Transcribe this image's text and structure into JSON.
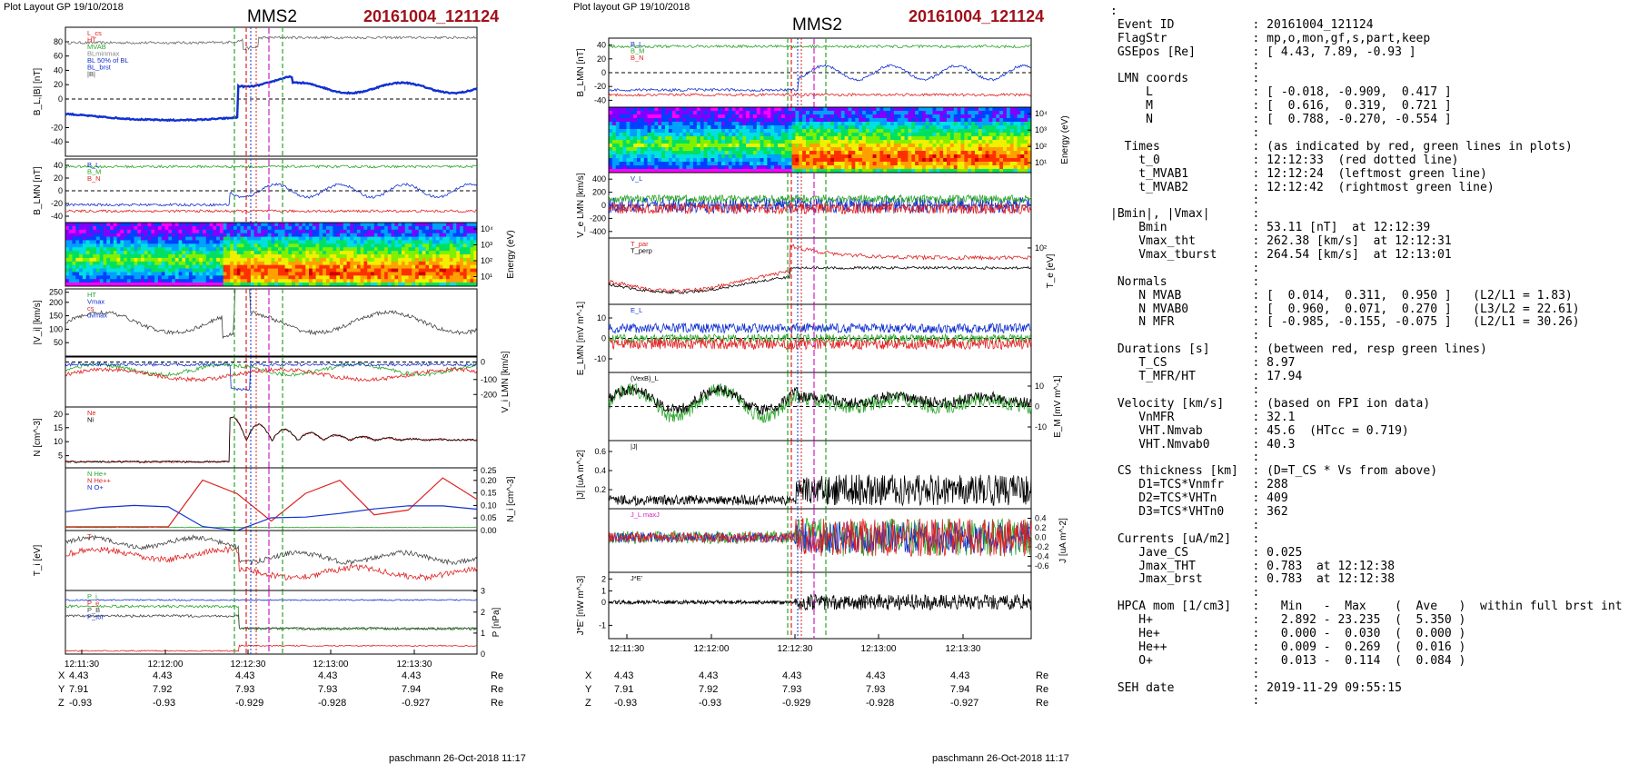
{
  "left": {
    "plot_layout": "Plot Layout GP 19/10/2018",
    "spacecraft": "MMS2",
    "event": "20161004_121124",
    "footer": "paschmann 26-Oct-2018 11:17",
    "time_ticks": [
      "12:11:30",
      "12:12:00",
      "12:12:30",
      "12:13:00",
      "12:13:30"
    ],
    "coords": {
      "X": [
        "4.43",
        "4.43",
        "4.43",
        "4.43",
        "4.43"
      ],
      "Y": [
        "7.91",
        "7.92",
        "7.93",
        "7.93",
        "7.94"
      ],
      "Z": [
        "-0.93",
        "-0.93",
        "-0.929",
        "-0.928",
        "-0.927"
      ],
      "unit": "Re"
    }
  },
  "right": {
    "plot_layout": "Plot layout GP 19/10/2018",
    "spacecraft": "MMS2",
    "event": "20161004_121124",
    "footer": "paschmann 26-Oct-2018 11:17",
    "time_ticks": [
      "12:11:30",
      "12:12:00",
      "12:12:30",
      "12:13:00",
      "12:13:30"
    ],
    "coords": {
      "X": [
        "4.43",
        "4.43",
        "4.43",
        "4.43",
        "4.43"
      ],
      "Y": [
        "7.91",
        "7.92",
        "7.93",
        "7.93",
        "7.94"
      ],
      "Z": [
        "-0.93",
        "-0.93",
        "-0.929",
        "-0.928",
        "-0.927"
      ],
      "unit": "Re"
    }
  },
  "colors": {
    "event": "#a0101a",
    "green_line": "#2aa52a",
    "red_line": "#e02020",
    "magenta_line": "#d020c0",
    "blue_line": "#1030d0"
  },
  "chart_data": [
    {
      "type": "line",
      "x_range": [
        "12:11:24",
        "12:13:54"
      ],
      "panels": [
        {
          "ylabel": "B_L,|B| [nT]",
          "yticks": [
            -40,
            -20,
            0,
            20,
            40,
            60,
            80
          ],
          "legend": [
            "L_cs",
            "HT",
            "MVAB",
            "BLminmax",
            "BL 50% of BL",
            "BL_brst",
            "|B|"
          ]
        },
        {
          "ylabel": "B_LMN [nT]",
          "yticks": [
            -40,
            -20,
            0,
            20,
            40
          ],
          "legend": [
            "B_L",
            "B_M",
            "B_N"
          ]
        },
        {
          "ylabel": "Energy (eV)",
          "yticks": [
            "10^1",
            "10^2",
            "10^3",
            "10^4"
          ],
          "type": "heatmap"
        },
        {
          "ylabel": "|V_i| [km/s]",
          "yticks": [
            50,
            100,
            150,
            200,
            250
          ],
          "legend": [
            "HT",
            "Vmax",
            "cs",
            "dvmax"
          ]
        },
        {
          "ylabel": "V_i LMN [km/s]",
          "yticks": [
            -200,
            -100,
            0
          ]
        },
        {
          "ylabel": "N [cm^-3]",
          "yticks": [
            5,
            10,
            15,
            20
          ],
          "legend": [
            "Ne",
            "Ni"
          ]
        },
        {
          "ylabel": "N_i [cm^-3]",
          "yticks": [
            0.0,
            0.05,
            0.1,
            0.15,
            0.2,
            0.25
          ],
          "legend": [
            "N He+",
            "N He++",
            "N O+"
          ]
        },
        {
          "ylabel": "T_i [eV]",
          "legend": [
            "T_i"
          ]
        },
        {
          "ylabel": "P [nPa]",
          "yticks": [
            0,
            1,
            2,
            3
          ],
          "legend": [
            "P_i",
            "P_e",
            "P_B",
            "P_tot"
          ]
        }
      ]
    },
    {
      "type": "line",
      "x_range": [
        "12:11:24",
        "12:13:54"
      ],
      "panels": [
        {
          "ylabel": "B_LMN [nT]",
          "yticks": [
            -40,
            -20,
            0,
            20,
            40
          ],
          "legend": [
            "B_L",
            "B_M",
            "B_N"
          ]
        },
        {
          "ylabel": "Energy (eV)",
          "yticks": [
            "10^1",
            "10^2",
            "10^3",
            "10^4"
          ],
          "type": "heatmap"
        },
        {
          "ylabel": "V_e LMN [km/s]",
          "yticks": [
            -400,
            -200,
            0,
            200,
            400
          ],
          "legend": [
            "V_L"
          ]
        },
        {
          "ylabel": "T_e [eV]",
          "yticks": [
            "10^2"
          ],
          "legend": [
            "T_par",
            "T_perp"
          ]
        },
        {
          "ylabel": "E_LMN [mV m^-1]",
          "yticks": [
            -10,
            0,
            10
          ],
          "legend": [
            "E_L"
          ]
        },
        {
          "ylabel": "E_M [mV m^-1]",
          "yticks": [
            -10,
            0,
            10
          ],
          "legend": [
            "(VexB)_L"
          ]
        },
        {
          "ylabel": "|J| [uA m^-2]",
          "yticks": [
            0.2,
            0.4,
            0.6
          ],
          "legend": [
            "|J|"
          ]
        },
        {
          "ylabel": "J [uA m^-2]",
          "yticks": [
            -0.6,
            -0.4,
            -0.2,
            0.0,
            0.2,
            0.4
          ],
          "legend": [
            "J_L maxJ"
          ]
        },
        {
          "ylabel": "J*E' [nW m^-3]",
          "yticks": [
            -1,
            0,
            1,
            2
          ],
          "legend": [
            "J*E'"
          ]
        }
      ]
    }
  ],
  "info_lines": [
    ":",
    " Event ID           : 20161004_121124",
    " FlagStr            : mp,o,mon,gf,s,part,keep",
    " GSEpos [Re]        : [ 4.43, 7.89, -0.93 ]",
    "                    :",
    " LMN coords         :",
    "     L              : [ -0.018, -0.909,  0.417 ]",
    "     M              : [  0.616,  0.319,  0.721 ]",
    "     N              : [  0.788, -0.270, -0.554 ]",
    "                    :",
    "  Times             : (as indicated by red, green lines in plots)",
    "    t_0             : 12:12:33  (red dotted line)",
    "    t_MVAB1         : 12:12:24  (leftmost green line)",
    "    t_MVAB2         : 12:12:42  (rightmost green line)",
    "                    :",
    "|Bmin|, |Vmax|      :",
    "    Bmin            : 53.11 [nT]  at 12:12:39",
    "    Vmax_tht        : 262.38 [km/s]  at 12:12:31",
    "    Vmax_tburst     : 264.54 [km/s]  at 12:13:01",
    "                    :",
    " Normals            :",
    "    N MVAB          : [  0.014,  0.311,  0.950 ]   (L2/L1 = 1.83)",
    "    N MVAB0         : [  0.960,  0.071,  0.270 ]   (L3/L2 = 22.61)",
    "    N MFR           : [ -0.985, -0.155, -0.075 ]   (L2/L1 = 30.26)",
    "                    :",
    " Durations [s]      : (between red, resp green lines)",
    "    T_CS            : 8.97",
    "    T_MFR/HT        : 17.94",
    "                    :",
    " Velocity [km/s]    : (based on FPI ion data)",
    "    VnMFR           : 32.1",
    "    VHT.Nmvab       : 45.6  (HTcc = 0.719)",
    "    VHT.Nmvab0      : 40.3",
    "                    :",
    " CS thickness [km]  : (D=T_CS * Vs from above)",
    "    D1=TCS*Vnmfr    : 288",
    "    D2=TCS*VHTn     : 409",
    "    D3=TCS*VHTn0    : 362",
    "                    :",
    " Currents [uA/m2]   :",
    "    Jave_CS         : 0.025",
    "    Jmax_THT        : 0.783  at 12:12:38",
    "    Jmax_brst       : 0.783  at 12:12:38",
    "                    :",
    " HPCA mom [1/cm3]   :   Min   -  Max    (  Ave   )  within full brst int",
    "    H+              :   2.892 - 23.235  (  5.350 )",
    "    He+             :   0.000 -  0.030  (  0.000 )",
    "    He++            :   0.009 -  0.269  (  0.016 )",
    "    O+              :   0.013 -  0.114  (  0.084 )",
    "                    :",
    " SEH date           : 2019-11-29 09:55:15",
    "                    :"
  ]
}
